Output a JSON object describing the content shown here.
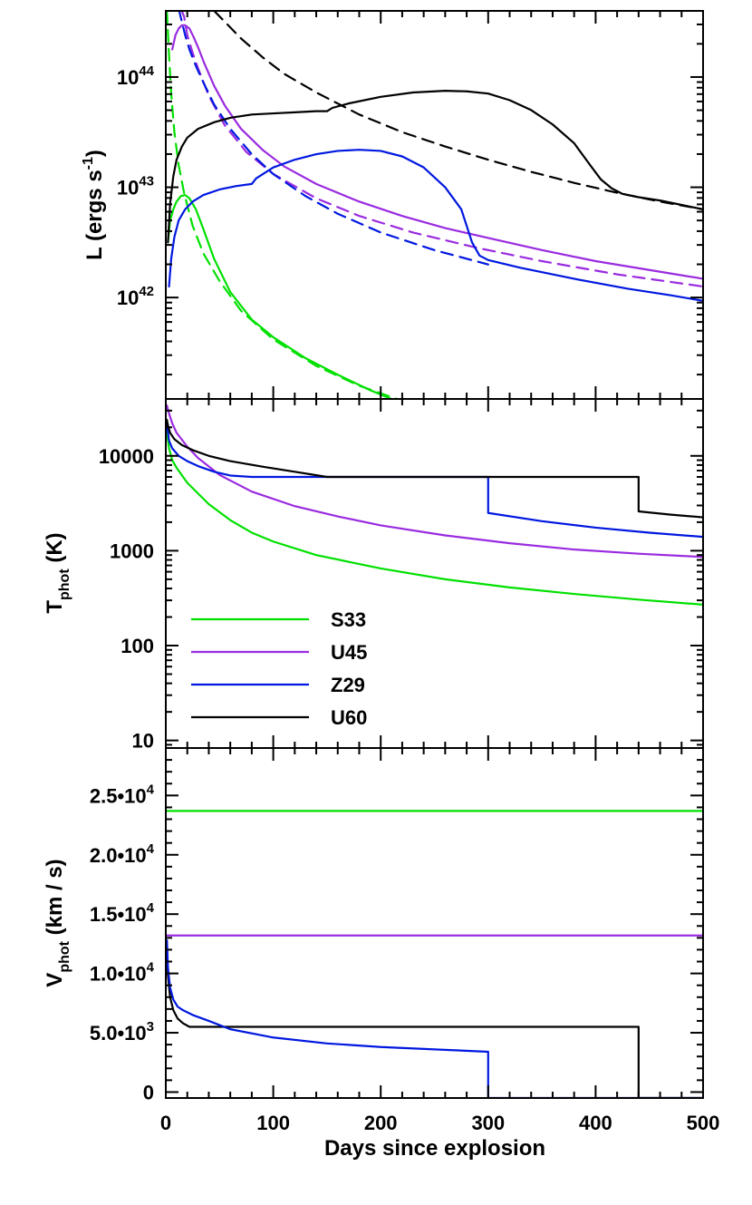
{
  "chart_data": [
    {
      "type": "line",
      "panel": "top",
      "ylabel_main": "L (ergs s",
      "ylabel_sup": "-1",
      "ylabel_tail": ")",
      "xlim": [
        0,
        500
      ],
      "ylim_log10": [
        41.08,
        44.6
      ],
      "yscale": "log",
      "y_ticks": [
        {
          "exp": 42,
          "base": "10",
          "sup": "42"
        },
        {
          "exp": 43,
          "base": "10",
          "sup": "43"
        },
        {
          "exp": 44,
          "base": "10",
          "sup": "44"
        }
      ],
      "series": [
        {
          "name": "S33",
          "color": "#00e000",
          "dashed": false,
          "x": [
            2,
            4,
            7,
            10,
            14,
            18,
            22,
            28,
            35,
            45,
            60,
            80,
            100,
            130,
            160,
            190,
            210
          ],
          "y": [
            42.5,
            42.7,
            42.8,
            42.87,
            42.92,
            42.93,
            42.9,
            42.8,
            42.62,
            42.35,
            42.05,
            41.8,
            41.64,
            41.45,
            41.3,
            41.16,
            41.08
          ]
        },
        {
          "name": "S33",
          "color": "#00e000",
          "dashed": true,
          "x": [
            1,
            3,
            5,
            8,
            12,
            17,
            25,
            35,
            50,
            70,
            100,
            140,
            180,
            215
          ],
          "y": [
            44.6,
            44.2,
            43.85,
            43.5,
            43.2,
            42.95,
            42.65,
            42.4,
            42.15,
            41.88,
            41.62,
            41.38,
            41.2,
            41.08
          ]
        },
        {
          "name": "U45",
          "color": "#9a2be0",
          "dashed": false,
          "x": [
            6,
            9,
            12,
            15,
            18,
            22,
            26,
            30,
            36,
            45,
            55,
            70,
            90,
            110,
            140,
            180,
            220,
            260,
            300,
            350,
            400,
            450,
            500
          ],
          "y": [
            44.25,
            44.38,
            44.44,
            44.47,
            44.47,
            44.44,
            44.36,
            44.27,
            44.12,
            43.92,
            43.74,
            43.53,
            43.34,
            43.19,
            43.03,
            42.87,
            42.74,
            42.63,
            42.54,
            42.43,
            42.33,
            42.25,
            42.17
          ]
        },
        {
          "name": "U45",
          "color": "#9a2be0",
          "dashed": true,
          "x": [
            14,
            17,
            20,
            25,
            30,
            40,
            55,
            75,
            100,
            140,
            180,
            230,
            290,
            350,
            420,
            500
          ],
          "y": [
            44.62,
            44.55,
            44.38,
            44.22,
            44.08,
            43.83,
            43.56,
            43.32,
            43.12,
            42.9,
            42.74,
            42.59,
            42.45,
            42.33,
            42.21,
            42.1
          ]
        },
        {
          "name": "Z29",
          "color": "#0018e0",
          "dashed": false,
          "x": [
            3,
            5,
            8,
            12,
            18,
            25,
            35,
            50,
            65,
            80,
            84,
            100,
            120,
            140,
            160,
            180,
            200,
            220,
            240,
            260,
            275,
            285,
            292,
            300,
            330,
            380,
            430,
            470,
            500
          ],
          "y": [
            42.1,
            42.35,
            42.55,
            42.7,
            42.8,
            42.87,
            42.93,
            42.98,
            43.01,
            43.03,
            43.08,
            43.18,
            43.25,
            43.3,
            43.33,
            43.34,
            43.33,
            43.28,
            43.18,
            43.0,
            42.8,
            42.5,
            42.38,
            42.34,
            42.27,
            42.17,
            42.08,
            42.02,
            41.97
          ]
        },
        {
          "name": "Z29",
          "color": "#0018e0",
          "dashed": true,
          "x": [
            12,
            15,
            18,
            22,
            28,
            35,
            45,
            60,
            80,
            100,
            130,
            160,
            200,
            250,
            300
          ],
          "y": [
            44.62,
            44.5,
            44.38,
            44.25,
            44.1,
            43.95,
            43.75,
            43.53,
            43.3,
            43.12,
            42.92,
            42.76,
            42.59,
            42.43,
            42.3
          ]
        },
        {
          "name": "U60",
          "color": "#000000",
          "dashed": false,
          "x": [
            2,
            4,
            7,
            10,
            15,
            20,
            30,
            45,
            60,
            80,
            100,
            120,
            140,
            150,
            155,
            170,
            200,
            230,
            260,
            280,
            300,
            320,
            340,
            360,
            380,
            395,
            405,
            415,
            425,
            440,
            460,
            480,
            500
          ],
          "y": [
            42.5,
            42.85,
            43.1,
            43.25,
            43.37,
            43.45,
            43.53,
            43.59,
            43.63,
            43.66,
            43.67,
            43.68,
            43.69,
            43.69,
            43.72,
            43.76,
            43.82,
            43.86,
            43.875,
            43.87,
            43.85,
            43.79,
            43.7,
            43.57,
            43.4,
            43.2,
            43.07,
            42.99,
            42.94,
            42.91,
            42.88,
            42.84,
            42.8
          ]
        },
        {
          "name": "U60",
          "color": "#000000",
          "dashed": true,
          "x": [
            45,
            55,
            70,
            90,
            110,
            140,
            180,
            220,
            260,
            300,
            340,
            380,
            420,
            460,
            500
          ],
          "y": [
            44.6,
            44.5,
            44.35,
            44.18,
            44.03,
            43.86,
            43.66,
            43.5,
            43.37,
            43.25,
            43.14,
            43.04,
            42.95,
            42.87,
            42.8
          ]
        }
      ]
    },
    {
      "type": "line",
      "panel": "middle",
      "ylabel_main": "T",
      "ylabel_sub": "phot",
      "ylabel_tail": " (K)",
      "xlim": [
        0,
        500
      ],
      "ylim_log10": [
        0.92,
        4.6
      ],
      "yscale": "log",
      "y_ticks": [
        {
          "value": 10,
          "label": "10"
        },
        {
          "value": 100,
          "label": "100"
        },
        {
          "value": 1000,
          "label": "1000"
        },
        {
          "value": 10000,
          "label": "10000"
        }
      ],
      "series": [
        {
          "name": "S33",
          "color": "#00e000",
          "x": [
            1,
            3,
            6,
            10,
            20,
            40,
            60,
            80,
            100,
            140,
            200,
            260,
            320,
            380,
            440,
            500
          ],
          "y": [
            18000,
            12000,
            9000,
            7500,
            5200,
            3100,
            2100,
            1550,
            1250,
            900,
            650,
            500,
            410,
            350,
            305,
            270
          ]
        },
        {
          "name": "U45",
          "color": "#9a2be0",
          "x": [
            1,
            3,
            6,
            10,
            20,
            30,
            50,
            80,
            120,
            160,
            200,
            260,
            320,
            380,
            440,
            500
          ],
          "y": [
            34000,
            28000,
            22000,
            17500,
            12500,
            9500,
            6300,
            4200,
            2950,
            2300,
            1850,
            1450,
            1200,
            1030,
            930,
            860
          ]
        },
        {
          "name": "Z29",
          "color": "#0018e0",
          "x": [
            1,
            3,
            6,
            12,
            20,
            30,
            45,
            60,
            80,
            300,
            300,
            350,
            400,
            450,
            500
          ],
          "y": [
            22000,
            14500,
            12000,
            10000,
            8800,
            7800,
            6800,
            6200,
            6000,
            6000,
            2500,
            2050,
            1750,
            1550,
            1400
          ]
        },
        {
          "name": "U60",
          "color": "#000000",
          "x": [
            1,
            2,
            4,
            8,
            15,
            25,
            40,
            60,
            90,
            120,
            150,
            440,
            440,
            470,
            500
          ],
          "y": [
            24000,
            21000,
            17500,
            15000,
            13000,
            11500,
            10000,
            8800,
            7700,
            6800,
            6000,
            6000,
            2600,
            2400,
            2250
          ]
        }
      ],
      "legend": {
        "placement": "lower-left",
        "entries": [
          {
            "label": "S33",
            "color": "#00e000"
          },
          {
            "label": "U45",
            "color": "#9a2be0"
          },
          {
            "label": "Z29",
            "color": "#0018e0"
          },
          {
            "label": "U60",
            "color": "#000000"
          }
        ]
      }
    },
    {
      "type": "line",
      "panel": "bottom",
      "ylabel_main": "V",
      "ylabel_sub": "phot",
      "ylabel_tail": " (km / s)",
      "xlabel": "Days since explosion",
      "xlim": [
        0,
        500
      ],
      "ylim": [
        -500,
        29000
      ],
      "y_ticks": [
        {
          "value": 0,
          "mant": "0",
          "sup": ""
        },
        {
          "value": 5000,
          "mant": "5.0•10",
          "sup": "3"
        },
        {
          "value": 10000,
          "mant": "1.0•10",
          "sup": "4"
        },
        {
          "value": 15000,
          "mant": "1.5•10",
          "sup": "4"
        },
        {
          "value": 20000,
          "mant": "2.0•10",
          "sup": "4"
        },
        {
          "value": 25000,
          "mant": "2.5•10",
          "sup": "4"
        }
      ],
      "x_ticks": [
        0,
        100,
        200,
        300,
        400,
        500
      ],
      "series": [
        {
          "name": "S33",
          "color": "#00e000",
          "x": [
            0,
            500
          ],
          "y": [
            23700,
            23700
          ]
        },
        {
          "name": "U45",
          "color": "#9a2be0",
          "x": [
            0,
            500
          ],
          "y": [
            13200,
            13200
          ]
        },
        {
          "name": "U60",
          "color": "#000000",
          "x": [
            1,
            2,
            4,
            7,
            11,
            16,
            22,
            440,
            440,
            500
          ],
          "y": [
            12500,
            9800,
            8000,
            6900,
            6200,
            5800,
            5500,
            5500,
            -500,
            -500
          ]
        },
        {
          "name": "Z29",
          "color": "#0018e0",
          "x": [
            1,
            2,
            4,
            7,
            11,
            16,
            25,
            40,
            60,
            100,
            150,
            200,
            250,
            300,
            300,
            500
          ],
          "y": [
            12800,
            10500,
            8800,
            7800,
            7200,
            6900,
            6500,
            6000,
            5300,
            4600,
            4100,
            3800,
            3600,
            3400,
            -500,
            -500
          ]
        }
      ]
    }
  ]
}
